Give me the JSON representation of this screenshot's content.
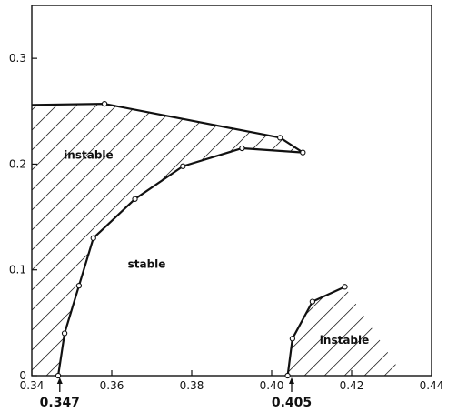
{
  "chart_data": {
    "type": "line",
    "title": "",
    "xlabel": "",
    "ylabel": "",
    "xlim": [
      0.34,
      0.44
    ],
    "ylim": [
      0,
      0.35
    ],
    "x_ticks": [
      "0.34",
      "0.36",
      "0.38",
      "0.40",
      "0.42",
      "0.44"
    ],
    "y_ticks": [
      "0",
      "0.1",
      "0.2",
      "0.3"
    ],
    "grid": false,
    "markers": [
      {
        "label": "0.347",
        "x": 0.347
      },
      {
        "label": "0.405",
        "x": 0.405
      }
    ],
    "regions": [
      {
        "label": "instable",
        "x": 0.348,
        "y": 0.205
      },
      {
        "label": "stable",
        "x": 0.364,
        "y": 0.102
      },
      {
        "label": "instable",
        "x": 0.412,
        "y": 0.03
      }
    ],
    "series": [
      {
        "points": [
          {
            "x": 0.3466,
            "y": 0.0
          },
          {
            "x": 0.3482,
            "y": 0.04
          },
          {
            "x": 0.3518,
            "y": 0.085
          },
          {
            "x": 0.3554,
            "y": 0.13
          },
          {
            "x": 0.3658,
            "y": 0.167
          },
          {
            "x": 0.3778,
            "y": 0.198
          },
          {
            "x": 0.3926,
            "y": 0.215
          },
          {
            "x": 0.4078,
            "y": 0.211
          },
          {
            "x": 0.4021,
            "y": 0.225
          },
          {
            "x": 0.3582,
            "y": 0.257
          },
          {
            "x": 0.34,
            "y": 0.256
          }
        ],
        "markers": [
          true,
          true,
          true,
          true,
          true,
          true,
          true,
          true,
          true,
          true,
          false
        ]
      },
      {
        "points": [
          {
            "x": 0.404,
            "y": 0.0
          },
          {
            "x": 0.4052,
            "y": 0.035
          },
          {
            "x": 0.4102,
            "y": 0.07
          },
          {
            "x": 0.4183,
            "y": 0.084
          }
        ],
        "markers": [
          true,
          true,
          true,
          true
        ]
      }
    ]
  }
}
